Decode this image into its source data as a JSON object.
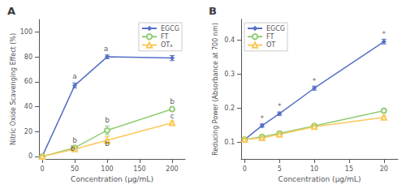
{
  "chart_data": [
    {
      "type": "line",
      "title": "A",
      "x_label": "Concentration (μg/mL)",
      "y_label": "Nitric Oxide Scavenging Effect (%)",
      "xlim": [
        -5,
        220
      ],
      "ylim": [
        -2,
        110
      ],
      "xticks": [
        0,
        50,
        100,
        150,
        200
      ],
      "yticks": [
        0,
        20,
        40,
        60,
        80,
        100
      ],
      "grid": false,
      "legend": "upper right",
      "series": [
        {
          "name": "EGCG",
          "x": [
            0,
            50,
            100,
            200
          ],
          "values": [
            0,
            57,
            80,
            79
          ],
          "errors": [
            0,
            2,
            1.5,
            2
          ],
          "marker": "filled_diamond",
          "line_style": "solid"
        },
        {
          "name": "FT",
          "x": [
            0,
            50,
            100,
            200
          ],
          "values": [
            0,
            7,
            21,
            38
          ],
          "errors": [
            0,
            1.5,
            3.5,
            1.5
          ],
          "marker": "open_circle",
          "line_style": "solid"
        },
        {
          "name": "OTₐ",
          "x": [
            0,
            50,
            100,
            200
          ],
          "values": [
            0,
            6,
            13,
            27
          ],
          "errors": [
            0,
            1.5,
            3,
            1.5
          ],
          "marker": "open_triangle",
          "line_style": "solid"
        }
      ],
      "annotations": [
        {
          "text": "a",
          "x": 50,
          "y": 61
        },
        {
          "text": "a",
          "x": 98,
          "y": 83
        },
        {
          "text": "b",
          "x": 50,
          "y": 10
        },
        {
          "text": "b",
          "x": 100,
          "y": 26
        },
        {
          "text": "b",
          "x": 200,
          "y": 41
        },
        {
          "text": "b",
          "x": 47,
          "y": 3
        },
        {
          "text": "b",
          "x": 100,
          "y": 7
        },
        {
          "text": "c",
          "x": 200,
          "y": 29
        }
      ]
    },
    {
      "type": "line",
      "title": "B",
      "x_label": "Concentration (μg/mL)",
      "y_label": "Reducing Power (Absorbance at 700 nm)",
      "xlim": [
        -0.5,
        22
      ],
      "ylim": [
        0.05,
        0.46
      ],
      "xticks": [
        0,
        5,
        10,
        15,
        20
      ],
      "yticks": [
        0.1,
        0.2,
        0.3,
        0.4
      ],
      "grid": false,
      "legend": "upper left",
      "series": [
        {
          "name": "EGCG",
          "x": [
            0,
            2.5,
            5,
            10,
            20
          ],
          "values": [
            0.107,
            0.148,
            0.183,
            0.258,
            0.395
          ],
          "errors": [
            0.003,
            0.005,
            0.005,
            0.006,
            0.007
          ],
          "marker": "filled_diamond",
          "line_style": "solid"
        },
        {
          "name": "FT",
          "x": [
            0,
            2.5,
            5,
            10,
            20
          ],
          "values": [
            0.107,
            0.115,
            0.125,
            0.147,
            0.192
          ],
          "errors": [
            0.003,
            0.003,
            0.003,
            0.004,
            0.005
          ],
          "marker": "open_circle",
          "line_style": "solid"
        },
        {
          "name": "OT",
          "x": [
            0,
            2.5,
            5,
            10,
            20
          ],
          "values": [
            0.107,
            0.112,
            0.122,
            0.145,
            0.172
          ],
          "errors": [
            0.003,
            0.003,
            0.003,
            0.004,
            0.005
          ],
          "marker": "open_triangle",
          "line_style": "solid"
        }
      ],
      "annotations": [
        {
          "text": "*",
          "x": 2.5,
          "y": 0.158
        },
        {
          "text": "*",
          "x": 5,
          "y": 0.193
        },
        {
          "text": "*",
          "x": 10,
          "y": 0.268
        },
        {
          "text": "*",
          "x": 20,
          "y": 0.406
        }
      ]
    }
  ]
}
